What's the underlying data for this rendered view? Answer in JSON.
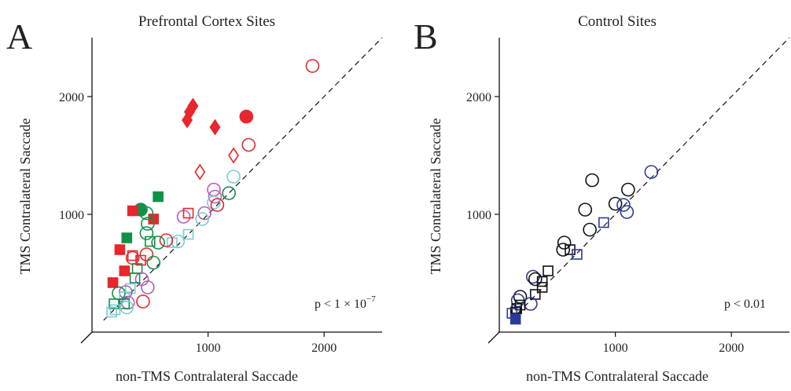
{
  "chart_data": [
    {
      "panel": "A",
      "type": "scatter",
      "title": "Prefrontal Cortex Sites",
      "xlabel": "non-TMS Contralateral Saccade",
      "ylabel": "TMS Contralateral Saccade",
      "xlim": [
        0,
        2500
      ],
      "ylim": [
        0,
        2500
      ],
      "xticks": [
        1000,
        2000
      ],
      "yticks": [
        1000,
        2000
      ],
      "tick_labels": {
        "x": [
          "1000",
          "2000"
        ],
        "y": [
          "1000",
          "2000"
        ]
      },
      "annotation": "p < 1 × 10",
      "annotation_sup": "−7",
      "diagonal": true,
      "grid": false,
      "colors": {
        "red": "#e8262b",
        "green": "#0f9148",
        "purple": "#b55cb5",
        "cyan": "#7ccbd1",
        "black": "#111111"
      },
      "points": [
        {
          "x": 1900,
          "y": 2260,
          "shape": "circle",
          "filled": false,
          "color": "red"
        },
        {
          "x": 1330,
          "y": 1830,
          "shape": "circle",
          "filled": true,
          "color": "red"
        },
        {
          "x": 1350,
          "y": 1590,
          "shape": "circle",
          "filled": false,
          "color": "red"
        },
        {
          "x": 870,
          "y": 1920,
          "shape": "diamond",
          "filled": true,
          "color": "red"
        },
        {
          "x": 840,
          "y": 1870,
          "shape": "diamond",
          "filled": true,
          "color": "red"
        },
        {
          "x": 820,
          "y": 1800,
          "shape": "diamond",
          "filled": true,
          "color": "red"
        },
        {
          "x": 1060,
          "y": 1740,
          "shape": "diamond",
          "filled": true,
          "color": "red"
        },
        {
          "x": 1220,
          "y": 1500,
          "shape": "diamond",
          "filled": false,
          "color": "red"
        },
        {
          "x": 930,
          "y": 1360,
          "shape": "diamond",
          "filled": false,
          "color": "red"
        },
        {
          "x": 1220,
          "y": 1320,
          "shape": "circle",
          "filled": false,
          "color": "cyan"
        },
        {
          "x": 1050,
          "y": 1210,
          "shape": "circle",
          "filled": false,
          "color": "purple"
        },
        {
          "x": 1180,
          "y": 1180,
          "shape": "circle",
          "filled": false,
          "color": "green"
        },
        {
          "x": 1060,
          "y": 1150,
          "shape": "circle",
          "filled": false,
          "color": "purple"
        },
        {
          "x": 1050,
          "y": 1100,
          "shape": "circle",
          "filled": false,
          "color": "cyan"
        },
        {
          "x": 1080,
          "y": 1080,
          "shape": "circle",
          "filled": false,
          "color": "red"
        },
        {
          "x": 970,
          "y": 1010,
          "shape": "circle",
          "filled": false,
          "color": "purple"
        },
        {
          "x": 950,
          "y": 960,
          "shape": "circle",
          "filled": false,
          "color": "cyan"
        },
        {
          "x": 790,
          "y": 980,
          "shape": "circle",
          "filled": false,
          "color": "purple"
        },
        {
          "x": 830,
          "y": 1010,
          "shape": "square",
          "filled": false,
          "color": "red"
        },
        {
          "x": 830,
          "y": 830,
          "shape": "square",
          "filled": false,
          "color": "cyan"
        },
        {
          "x": 740,
          "y": 770,
          "shape": "circle",
          "filled": false,
          "color": "cyan"
        },
        {
          "x": 690,
          "y": 760,
          "shape": "square",
          "filled": false,
          "color": "cyan"
        },
        {
          "x": 640,
          "y": 780,
          "shape": "circle",
          "filled": false,
          "color": "red"
        },
        {
          "x": 570,
          "y": 1150,
          "shape": "square",
          "filled": true,
          "color": "green"
        },
        {
          "x": 420,
          "y": 1040,
          "shape": "circle",
          "filled": true,
          "color": "green"
        },
        {
          "x": 350,
          "y": 1030,
          "shape": "square",
          "filled": true,
          "color": "red"
        },
        {
          "x": 530,
          "y": 960,
          "shape": "square",
          "filled": true,
          "color": "red"
        },
        {
          "x": 470,
          "y": 1010,
          "shape": "circle",
          "filled": false,
          "color": "green"
        },
        {
          "x": 480,
          "y": 920,
          "shape": "circle",
          "filled": false,
          "color": "green"
        },
        {
          "x": 470,
          "y": 840,
          "shape": "circle",
          "filled": false,
          "color": "green"
        },
        {
          "x": 570,
          "y": 760,
          "shape": "circle",
          "filled": false,
          "color": "green"
        },
        {
          "x": 500,
          "y": 770,
          "shape": "square",
          "filled": false,
          "color": "green"
        },
        {
          "x": 300,
          "y": 800,
          "shape": "square",
          "filled": true,
          "color": "green"
        },
        {
          "x": 240,
          "y": 700,
          "shape": "square",
          "filled": true,
          "color": "red"
        },
        {
          "x": 350,
          "y": 650,
          "shape": "square",
          "filled": false,
          "color": "red"
        },
        {
          "x": 420,
          "y": 610,
          "shape": "square",
          "filled": false,
          "color": "red"
        },
        {
          "x": 350,
          "y": 630,
          "shape": "circle",
          "filled": false,
          "color": "red"
        },
        {
          "x": 470,
          "y": 660,
          "shape": "circle",
          "filled": false,
          "color": "red"
        },
        {
          "x": 530,
          "y": 590,
          "shape": "circle",
          "filled": false,
          "color": "green"
        },
        {
          "x": 390,
          "y": 540,
          "shape": "square",
          "filled": false,
          "color": "green"
        },
        {
          "x": 280,
          "y": 520,
          "shape": "square",
          "filled": true,
          "color": "red"
        },
        {
          "x": 180,
          "y": 420,
          "shape": "square",
          "filled": true,
          "color": "red"
        },
        {
          "x": 430,
          "y": 450,
          "shape": "circle",
          "filled": false,
          "color": "purple"
        },
        {
          "x": 370,
          "y": 460,
          "shape": "square",
          "filled": false,
          "color": "green"
        },
        {
          "x": 480,
          "y": 380,
          "shape": "circle",
          "filled": false,
          "color": "purple"
        },
        {
          "x": 330,
          "y": 370,
          "shape": "square",
          "filled": false,
          "color": "cyan"
        },
        {
          "x": 290,
          "y": 340,
          "shape": "circle",
          "filled": false,
          "color": "purple"
        },
        {
          "x": 230,
          "y": 330,
          "shape": "circle",
          "filled": false,
          "color": "green"
        },
        {
          "x": 280,
          "y": 300,
          "shape": "square",
          "filled": false,
          "color": "cyan"
        },
        {
          "x": 440,
          "y": 260,
          "shape": "circle",
          "filled": false,
          "color": "red"
        },
        {
          "x": 310,
          "y": 250,
          "shape": "circle",
          "filled": false,
          "color": "purple"
        },
        {
          "x": 280,
          "y": 240,
          "shape": "square",
          "filled": false,
          "color": "green"
        },
        {
          "x": 190,
          "y": 240,
          "shape": "square",
          "filled": false,
          "color": "green"
        },
        {
          "x": 300,
          "y": 210,
          "shape": "circle",
          "filled": false,
          "color": "cyan"
        },
        {
          "x": 200,
          "y": 190,
          "shape": "square",
          "filled": false,
          "color": "cyan"
        },
        {
          "x": 170,
          "y": 170,
          "shape": "square",
          "filled": false,
          "color": "cyan"
        }
      ]
    },
    {
      "panel": "B",
      "type": "scatter",
      "title": "Control Sites",
      "xlabel": "non-TMS Contralateral Saccade",
      "ylabel": "TMS Contralateral Saccade",
      "xlim": [
        0,
        2500
      ],
      "ylim": [
        0,
        2500
      ],
      "xticks": [
        1000,
        2000
      ],
      "yticks": [
        1000,
        2000
      ],
      "tick_labels": {
        "x": [
          "1000",
          "2000"
        ],
        "y": [
          "1000",
          "2000"
        ]
      },
      "annotation": "p < 0.01",
      "annotation_sup": "",
      "diagonal": true,
      "grid": false,
      "colors": {
        "black": "#111111",
        "blue": "#2b3a9a"
      },
      "points": [
        {
          "x": 1310,
          "y": 1360,
          "shape": "circle",
          "filled": false,
          "color": "blue"
        },
        {
          "x": 800,
          "y": 1290,
          "shape": "circle",
          "filled": false,
          "color": "black"
        },
        {
          "x": 1110,
          "y": 1210,
          "shape": "circle",
          "filled": false,
          "color": "black"
        },
        {
          "x": 1000,
          "y": 1090,
          "shape": "circle",
          "filled": false,
          "color": "black"
        },
        {
          "x": 1070,
          "y": 1080,
          "shape": "circle",
          "filled": false,
          "color": "blue"
        },
        {
          "x": 1100,
          "y": 1020,
          "shape": "circle",
          "filled": false,
          "color": "blue"
        },
        {
          "x": 740,
          "y": 1040,
          "shape": "circle",
          "filled": false,
          "color": "black"
        },
        {
          "x": 900,
          "y": 930,
          "shape": "square",
          "filled": false,
          "color": "blue"
        },
        {
          "x": 780,
          "y": 870,
          "shape": "circle",
          "filled": false,
          "color": "black"
        },
        {
          "x": 560,
          "y": 760,
          "shape": "circle",
          "filled": false,
          "color": "black"
        },
        {
          "x": 550,
          "y": 700,
          "shape": "circle",
          "filled": false,
          "color": "black"
        },
        {
          "x": 610,
          "y": 700,
          "shape": "square",
          "filled": false,
          "color": "black"
        },
        {
          "x": 670,
          "y": 660,
          "shape": "square",
          "filled": false,
          "color": "blue"
        },
        {
          "x": 420,
          "y": 520,
          "shape": "square",
          "filled": false,
          "color": "black"
        },
        {
          "x": 290,
          "y": 470,
          "shape": "circle",
          "filled": false,
          "color": "blue"
        },
        {
          "x": 310,
          "y": 450,
          "shape": "circle",
          "filled": false,
          "color": "black"
        },
        {
          "x": 370,
          "y": 430,
          "shape": "square",
          "filled": false,
          "color": "black"
        },
        {
          "x": 370,
          "y": 380,
          "shape": "square",
          "filled": false,
          "color": "black"
        },
        {
          "x": 310,
          "y": 320,
          "shape": "square",
          "filled": false,
          "color": "black"
        },
        {
          "x": 180,
          "y": 300,
          "shape": "circle",
          "filled": false,
          "color": "black"
        },
        {
          "x": 160,
          "y": 270,
          "shape": "circle",
          "filled": false,
          "color": "blue"
        },
        {
          "x": 270,
          "y": 240,
          "shape": "circle",
          "filled": false,
          "color": "blue"
        },
        {
          "x": 180,
          "y": 230,
          "shape": "square",
          "filled": false,
          "color": "black"
        },
        {
          "x": 150,
          "y": 200,
          "shape": "square",
          "filled": false,
          "color": "black"
        },
        {
          "x": 140,
          "y": 170,
          "shape": "square",
          "filled": false,
          "color": "black"
        },
        {
          "x": 110,
          "y": 160,
          "shape": "square",
          "filled": false,
          "color": "blue"
        },
        {
          "x": 140,
          "y": 110,
          "shape": "square",
          "filled": true,
          "color": "blue"
        }
      ]
    }
  ]
}
